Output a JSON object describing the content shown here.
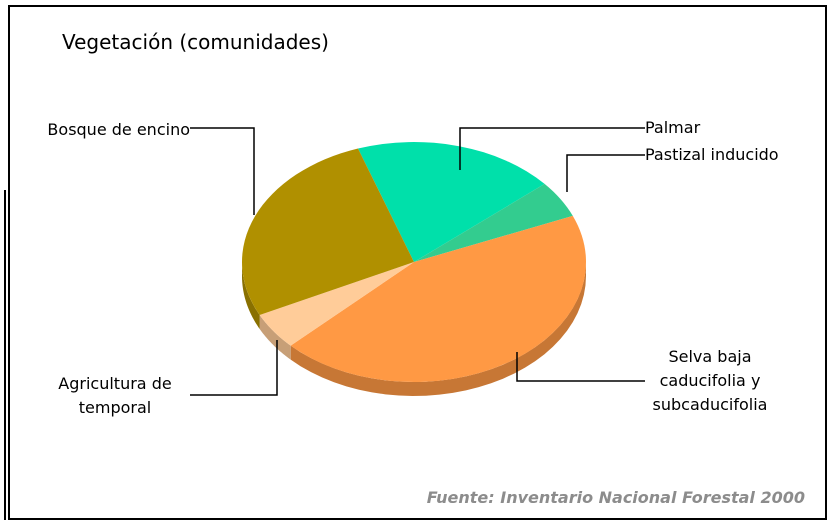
{
  "chart_data": {
    "type": "pie3d",
    "title": "Vegetación (comunidades)",
    "categories": [
      "Palmar",
      "Pastizal inducido",
      "Selva baja caducifolia y subcaducifolia",
      "Agricultura de temporal",
      "Bosque de encino"
    ],
    "values": [
      19,
      5,
      44,
      5,
      27
    ],
    "colors": [
      "#00e0aa",
      "#33cc8f",
      "#ff9944",
      "#ffcc99",
      "#b09000"
    ],
    "source": "Fuente: Inventario Nacional Forestal 2000"
  }
}
